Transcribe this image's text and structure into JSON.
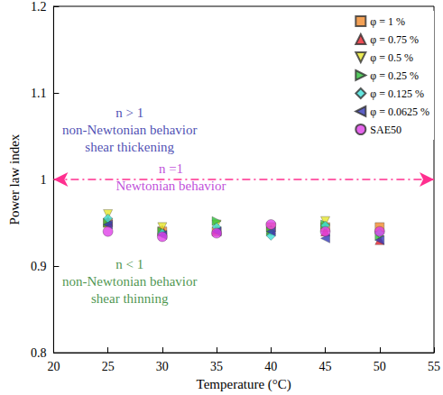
{
  "chart_data": {
    "type": "scatter",
    "x_label": "Temperature (°C)",
    "y_label": "Power law index",
    "xlim": [
      20,
      55
    ],
    "xticks": [
      20,
      25,
      30,
      35,
      40,
      45,
      50,
      55
    ],
    "ylim": [
      0.8,
      1.2
    ],
    "yticks": [
      0.8,
      0.9,
      1,
      1.1,
      1.2
    ],
    "grid": false,
    "legend": "upper right",
    "x": [
      25,
      30,
      35,
      40,
      45,
      50
    ],
    "series": [
      {
        "name": "φ = 1 %",
        "color": "#f08a2c",
        "marker": "square",
        "values": [
          0.95,
          0.94,
          0.94,
          0.945,
          0.945,
          0.945
        ]
      },
      {
        "name": "φ = 0.75 %",
        "color": "#e8202a",
        "marker": "triangle-up",
        "values": [
          0.952,
          0.942,
          0.942,
          0.942,
          0.94,
          0.93
        ]
      },
      {
        "name": "φ = 0.5 %",
        "color": "#e6e62a",
        "marker": "triangle-down",
        "values": [
          0.96,
          0.945,
          0.948,
          0.94,
          0.952,
          0.935
        ]
      },
      {
        "name": "φ = 0.25 %",
        "color": "#2ec03a",
        "marker": "triangle-right",
        "values": [
          0.95,
          0.94,
          0.952,
          0.94,
          0.948,
          0.935
        ]
      },
      {
        "name": "φ = 0.125 %",
        "color": "#3ee0d8",
        "marker": "diamond",
        "values": [
          0.955,
          0.938,
          0.945,
          0.935,
          0.947,
          0.938
        ]
      },
      {
        "name": "φ = 0.0625 %",
        "color": "#3438b8",
        "marker": "triangle-left",
        "values": [
          0.948,
          0.936,
          0.94,
          0.94,
          0.932,
          0.93
        ]
      },
      {
        "name": "SAE50",
        "color": "#e040e8",
        "marker": "circle",
        "values": [
          0.94,
          0.934,
          0.938,
          0.948,
          0.94,
          0.94
        ]
      }
    ],
    "reference_line": {
      "y": 1,
      "color": "#ff2f8f",
      "line_style": "dashdot"
    },
    "annotations": [
      {
        "lines": [
          "n > 1",
          "non-Newtonian behavior",
          "shear thickening"
        ],
        "x": 27,
        "y": 1.057,
        "color": "#1a1aa0"
      },
      {
        "lines": [
          "n =1",
          "Newtonian behavior"
        ],
        "x": 30.8,
        "y": 1.003,
        "color": "#b020d0"
      },
      {
        "lines": [
          "n < 1",
          "non-Newtonian behavior",
          "shear thinning"
        ],
        "x": 27,
        "y": 0.882,
        "color": "#1a7a1a"
      }
    ]
  }
}
